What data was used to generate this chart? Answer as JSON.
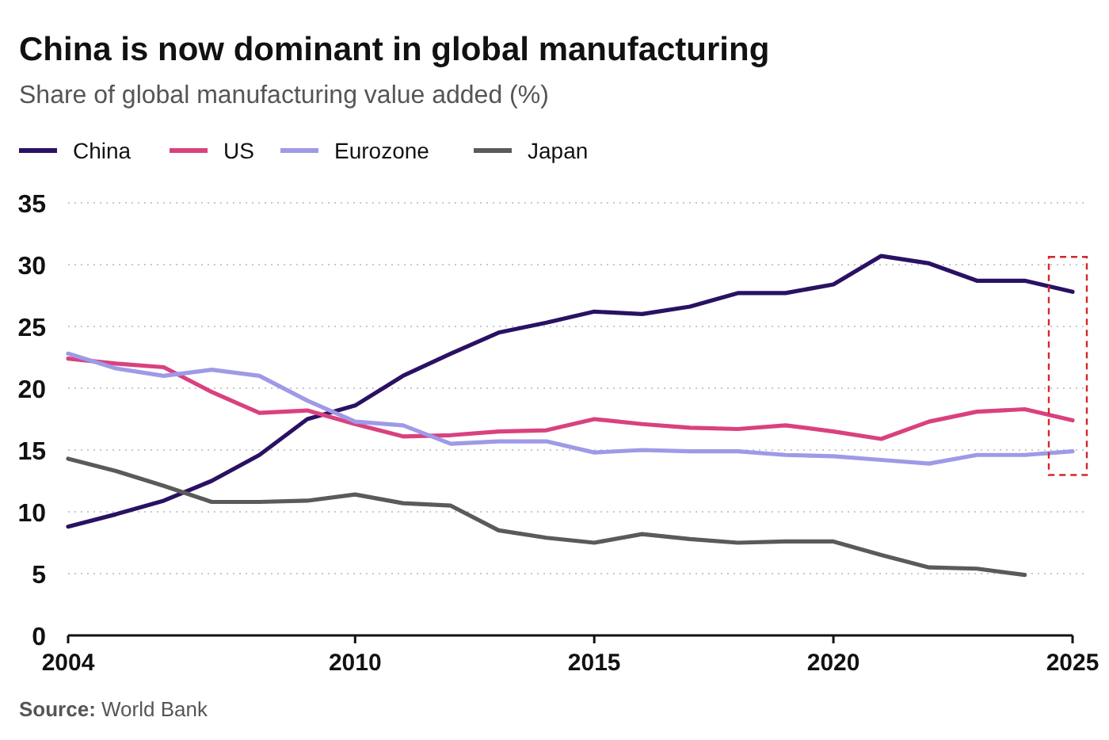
{
  "chart_data": {
    "type": "line",
    "title": "China is now dominant in global manufacturing",
    "subtitle": "Share of global manufacturing value added (%)",
    "x": [
      2004,
      2005,
      2006,
      2007,
      2008,
      2009,
      2010,
      2011,
      2012,
      2013,
      2014,
      2015,
      2016,
      2017,
      2018,
      2019,
      2020,
      2021,
      2022,
      2023,
      2024,
      2025
    ],
    "series": [
      {
        "name": "China",
        "color": "#2a1163",
        "values": [
          8.8,
          9.8,
          10.9,
          12.5,
          14.6,
          17.5,
          18.6,
          21.0,
          22.8,
          24.5,
          25.3,
          26.2,
          26.0,
          26.6,
          27.7,
          27.7,
          28.4,
          30.7,
          30.1,
          28.7,
          28.7,
          27.8
        ]
      },
      {
        "name": "US",
        "color": "#d9417f",
        "values": [
          22.4,
          22.0,
          21.7,
          19.7,
          18.0,
          18.2,
          17.1,
          16.1,
          16.2,
          16.5,
          16.6,
          17.5,
          17.1,
          16.8,
          16.7,
          17.0,
          16.5,
          15.9,
          17.3,
          18.1,
          18.3,
          17.4
        ]
      },
      {
        "name": "Eurozone",
        "color": "#9e9ae6",
        "values": [
          22.8,
          21.6,
          21.0,
          21.5,
          21.0,
          19.0,
          17.3,
          17.0,
          15.5,
          15.7,
          15.7,
          14.8,
          15.0,
          14.9,
          14.9,
          14.6,
          14.5,
          14.2,
          13.9,
          14.6,
          14.6,
          14.9
        ]
      },
      {
        "name": "Japan",
        "color": "#5a5a5a",
        "values": [
          14.3,
          13.3,
          12.1,
          10.8,
          10.8,
          10.9,
          11.4,
          10.7,
          10.5,
          8.5,
          7.9,
          7.5,
          8.2,
          7.8,
          7.5,
          7.6,
          7.6,
          6.5,
          5.5,
          5.4,
          4.9,
          null
        ]
      }
    ],
    "xlim": [
      2004,
      2025
    ],
    "xticks": [
      2004,
      2010,
      2015,
      2020,
      2025
    ],
    "ylim": [
      0,
      35
    ],
    "yticks": [
      0,
      5,
      10,
      15,
      20,
      25,
      30,
      35
    ],
    "grid": "y",
    "legend": "top left",
    "marker": "none",
    "line_style": "solid",
    "annotations": [
      "Source: World Bank"
    ]
  }
}
